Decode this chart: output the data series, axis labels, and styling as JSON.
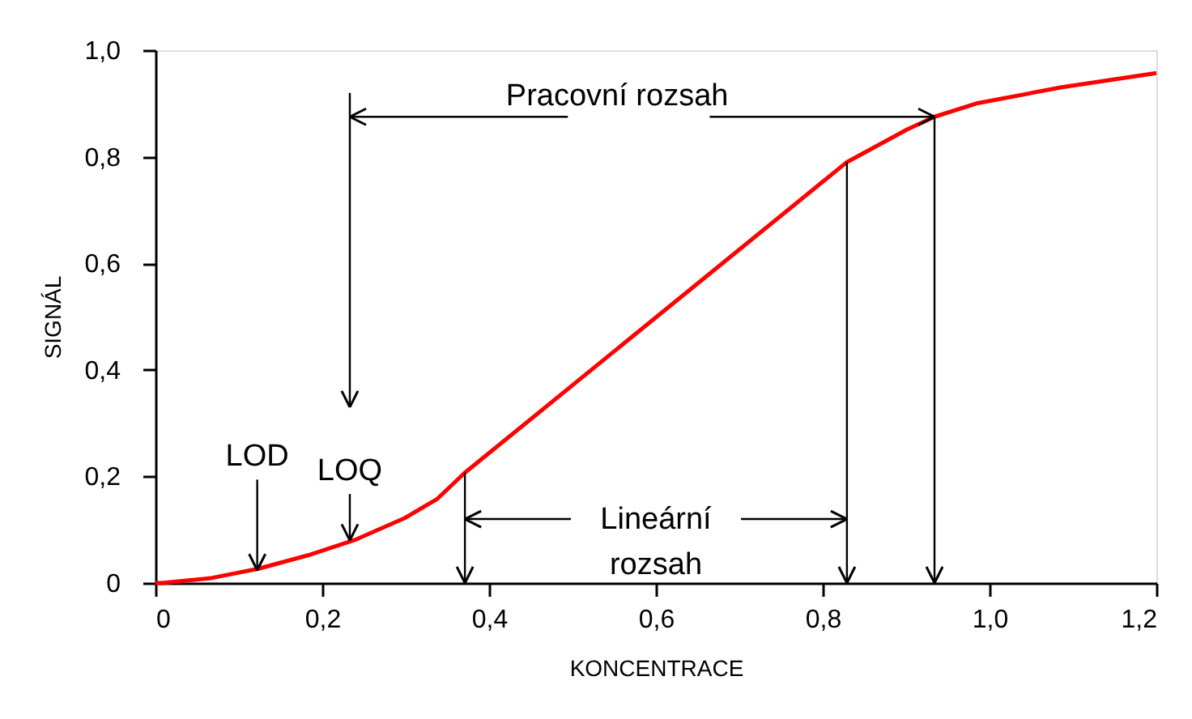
{
  "chart_data": {
    "type": "line",
    "xlabel": "KONCENTRACE",
    "ylabel": "SIGNÁL",
    "x": [
      0,
      0.008,
      0.066,
      0.124,
      0.183,
      0.241,
      0.299,
      0.338,
      0.371,
      0.829,
      0.901,
      0.934,
      0.984,
      1.085,
      1.2
    ],
    "series": [
      {
        "color": "#ff0000",
        "values": [
          0,
          0,
          0.009,
          0.027,
          0.052,
          0.082,
          0.122,
          0.158,
          0.207,
          0.79,
          0.851,
          0.875,
          0.9,
          0.93,
          0.957
        ]
      }
    ],
    "xlim": [
      0,
      1.2
    ],
    "ylim": [
      0,
      1.0
    ],
    "xticks": [
      0,
      {
        "value": 0.2,
        "label": "0,2"
      },
      {
        "value": 0.4,
        "label": "0,4"
      },
      {
        "value": 0.6,
        "label": "0,6"
      },
      {
        "value": 0.8,
        "label": "0,8"
      },
      {
        "value": 1.0,
        "label": "1,0"
      },
      {
        "value": 1.2,
        "label": "1,2"
      }
    ],
    "yticks": [
      0,
      {
        "value": 0.2,
        "label": "0,2"
      },
      {
        "value": 0.4,
        "label": "0,4"
      },
      {
        "value": 0.6,
        "label": "0,6"
      },
      {
        "value": 0.8,
        "label": "0,8"
      },
      {
        "value": 1.0,
        "label": "1,0"
      }
    ],
    "ref_lines": [
      {
        "axis": "x",
        "value": 0.371,
        "label": null
      },
      {
        "axis": "x",
        "value": 0.829,
        "label": null
      },
      {
        "axis": "x",
        "value": 0.934,
        "label": null
      }
    ],
    "annotations": [
      {
        "text": "LOD",
        "x": 0.122,
        "y": 0.024
      },
      {
        "text": "LOQ",
        "x": 0.233,
        "y": 0.08
      },
      {
        "text": "Pracovní rozsah",
        "x": 0.934,
        "y": 0.875
      },
      {
        "text": "Lineární rozsah",
        "x": 0.829,
        "y": 0.12
      }
    ],
    "grid": false,
    "marker": "none",
    "line_style": "solid"
  }
}
